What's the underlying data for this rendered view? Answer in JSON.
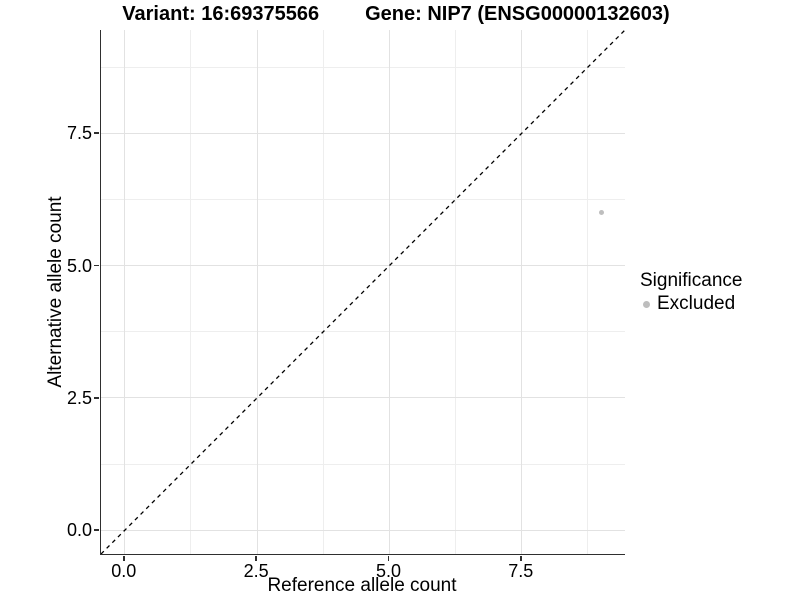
{
  "title": {
    "variant": "Variant: 16:69375566",
    "gene": "Gene: NIP7 (ENSG00000132603)"
  },
  "chart_data": {
    "type": "scatter",
    "title": "Variant: 16:69375566   Gene: NIP7 (ENSG00000132603)",
    "xlabel": "Reference allele count",
    "ylabel": "Alternative allele count",
    "xlim": [
      -0.45,
      9.45
    ],
    "ylim": [
      -0.45,
      9.45
    ],
    "x_ticks": [
      0,
      2.5,
      5,
      7.5
    ],
    "x_tick_labels": [
      "0.0",
      "2.5",
      "5.0",
      "7.5"
    ],
    "y_ticks": [
      0,
      2.5,
      5,
      7.5
    ],
    "y_tick_labels": [
      "0.0",
      "2.5",
      "5.0",
      "7.5"
    ],
    "x_minor_ticks": [
      1.25,
      3.75,
      6.25,
      8.75
    ],
    "y_minor_ticks": [
      1.25,
      3.75,
      6.25,
      8.75
    ],
    "grid": true,
    "points": [
      {
        "x": 9,
        "y": 6,
        "series": "Excluded"
      }
    ],
    "reference_line": {
      "slope": 1,
      "intercept": 0,
      "style": "dashed",
      "color": "#000000"
    },
    "legend": {
      "position": "right",
      "title": "Significance",
      "entries": [
        {
          "label": "Excluded",
          "color": "#bebebe"
        }
      ]
    }
  },
  "colors": {
    "background": "#ffffff",
    "grid_major": "#e2e2e2",
    "grid_minor": "#eeeeee",
    "axis_line": "#2f2f2f",
    "point_excluded": "#bebebe",
    "text": "#000000"
  }
}
